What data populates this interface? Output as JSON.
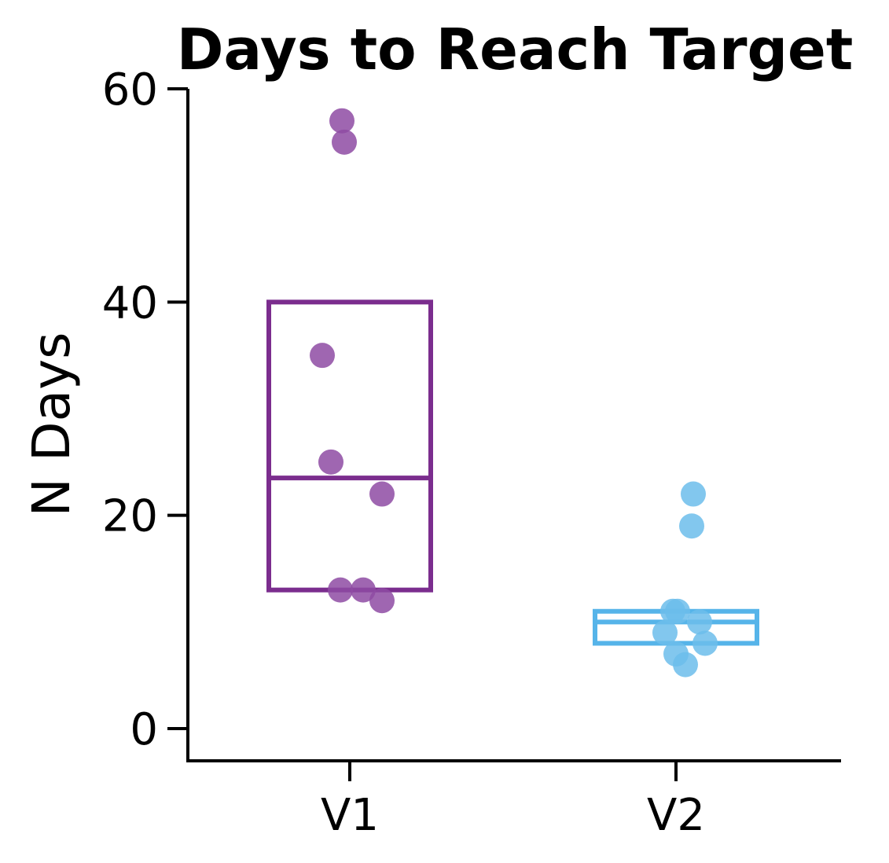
{
  "chart_data": {
    "type": "box",
    "title": "Days to Reach Target",
    "xlabel": "",
    "ylabel": "N Days",
    "ylim": [
      -3,
      60
    ],
    "yticks": [
      0,
      20,
      40,
      60
    ],
    "categories": [
      "V1",
      "V2"
    ],
    "grid": false,
    "legend": "none",
    "groups": [
      {
        "category": "V1",
        "color": "#7B2D8E",
        "point_color": "#8E4BA3",
        "box": {
          "q1": 13,
          "median": 23.5,
          "q3": 40
        },
        "points": [
          57,
          55,
          35,
          25,
          22,
          13,
          13,
          12
        ]
      },
      {
        "category": "V2",
        "color": "#56B4E9",
        "point_color": "#6CBDEB",
        "box": {
          "q1": 8,
          "median": 10,
          "q3": 11
        },
        "points": [
          22,
          19,
          11,
          11,
          10,
          9,
          8,
          7,
          6
        ]
      }
    ]
  }
}
